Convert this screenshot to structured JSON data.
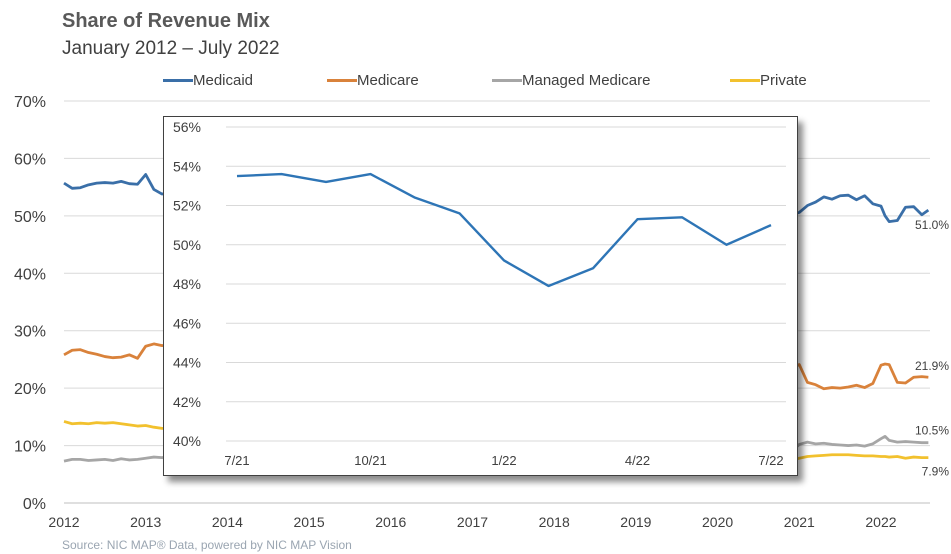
{
  "title": "Share of Revenue Mix",
  "subtitle": "January  2012 – July 2022",
  "source": "Source: NIC MAP® Data, powered  by NIC MAP Vision",
  "chart_data": [
    {
      "type": "line",
      "ylim": [
        0,
        70
      ],
      "y_ticks": [
        "0%",
        "10%",
        "20%",
        "30%",
        "40%",
        "50%",
        "60%",
        "70%"
      ],
      "x_ticks": [
        "2012",
        "2013",
        "2014",
        "2015",
        "2016",
        "2017",
        "2018",
        "2019",
        "2020",
        "2021",
        "2022"
      ],
      "xlim": [
        2012,
        2022.6
      ],
      "grid": true,
      "legend": "top",
      "series": [
        {
          "name": "Medicaid",
          "color": "#3a6fa8",
          "end_label": "51.0%",
          "x": [
            2012.0,
            2012.1,
            2012.2,
            2012.3,
            2012.4,
            2012.5,
            2012.6,
            2012.7,
            2012.8,
            2012.9,
            2013.0,
            2013.1,
            2013.2,
            2013.25,
            2020.9,
            2021.0,
            2021.1,
            2021.2,
            2021.3,
            2021.4,
            2021.5,
            2021.6,
            2021.7,
            2021.8,
            2021.9,
            2022.0,
            2022.05,
            2022.1,
            2022.2,
            2022.3,
            2022.4,
            2022.5,
            2022.58
          ],
          "y": [
            55.7,
            54.8,
            54.9,
            55.4,
            55.7,
            55.8,
            55.7,
            56.0,
            55.6,
            55.5,
            57.2,
            54.6,
            53.8,
            53.9,
            50.2,
            50.6,
            51.8,
            52.4,
            53.3,
            52.9,
            53.5,
            53.6,
            52.8,
            53.5,
            52.1,
            51.7,
            50.0,
            49.0,
            49.2,
            51.5,
            51.6,
            50.2,
            51.0
          ]
        },
        {
          "name": "Medicare",
          "color": "#d9823b",
          "end_label": "21.9%",
          "x": [
            2012.0,
            2012.1,
            2012.2,
            2012.3,
            2012.4,
            2012.5,
            2012.6,
            2012.7,
            2012.8,
            2012.9,
            2013.0,
            2013.1,
            2013.2,
            2013.25,
            2020.9,
            2021.0,
            2021.1,
            2021.2,
            2021.3,
            2021.4,
            2021.5,
            2021.6,
            2021.7,
            2021.8,
            2021.9,
            2022.0,
            2022.05,
            2022.1,
            2022.2,
            2022.3,
            2022.4,
            2022.5,
            2022.58
          ],
          "y": [
            25.8,
            26.6,
            26.7,
            26.2,
            25.9,
            25.5,
            25.3,
            25.4,
            25.8,
            25.2,
            27.3,
            27.7,
            27.4,
            27.5,
            23.5,
            24.1,
            21.0,
            20.6,
            19.9,
            20.1,
            20.0,
            20.2,
            20.5,
            20.1,
            20.8,
            24.0,
            24.2,
            24.1,
            21.0,
            20.9,
            21.9,
            22.0,
            21.9
          ]
        },
        {
          "name": "Managed Medicare",
          "color": "#a6a6a6",
          "end_label": "10.5%",
          "x": [
            2012.0,
            2012.1,
            2012.2,
            2012.3,
            2012.4,
            2012.5,
            2012.6,
            2012.7,
            2012.8,
            2012.9,
            2013.0,
            2013.1,
            2013.2,
            2013.25,
            2020.9,
            2021.0,
            2021.1,
            2021.2,
            2021.3,
            2021.4,
            2021.5,
            2021.6,
            2021.7,
            2021.8,
            2021.9,
            2022.0,
            2022.05,
            2022.1,
            2022.2,
            2022.3,
            2022.4,
            2022.5,
            2022.58
          ],
          "y": [
            7.3,
            7.6,
            7.6,
            7.4,
            7.5,
            7.6,
            7.4,
            7.7,
            7.5,
            7.6,
            7.8,
            8.0,
            7.9,
            8.0,
            8.9,
            10.2,
            10.6,
            10.3,
            10.4,
            10.2,
            10.1,
            10.0,
            10.1,
            9.9,
            10.3,
            11.2,
            11.6,
            10.9,
            10.6,
            10.7,
            10.6,
            10.5,
            10.5
          ]
        },
        {
          "name": "Private",
          "color": "#f2c12e",
          "end_label": "7.9%",
          "x": [
            2012.0,
            2012.1,
            2012.2,
            2012.3,
            2012.4,
            2012.5,
            2012.6,
            2012.7,
            2012.8,
            2012.9,
            2013.0,
            2013.1,
            2013.2,
            2013.25,
            2020.9,
            2021.0,
            2021.1,
            2021.2,
            2021.3,
            2021.4,
            2021.5,
            2021.6,
            2021.7,
            2021.8,
            2021.9,
            2022.0,
            2022.05,
            2022.1,
            2022.2,
            2022.3,
            2022.4,
            2022.5,
            2022.58
          ],
          "y": [
            14.2,
            13.8,
            13.9,
            13.8,
            14.0,
            13.9,
            14.0,
            13.8,
            13.6,
            13.4,
            13.5,
            13.2,
            13.0,
            13.0,
            7.4,
            7.8,
            8.1,
            8.2,
            8.3,
            8.4,
            8.4,
            8.4,
            8.3,
            8.2,
            8.2,
            8.1,
            8.1,
            8.0,
            8.1,
            7.8,
            8.0,
            7.9,
            7.9
          ]
        }
      ]
    },
    {
      "type": "line",
      "ylim": [
        40,
        56
      ],
      "y_ticks": [
        "40%",
        "42%",
        "44%",
        "46%",
        "48%",
        "50%",
        "52%",
        "54%",
        "56%"
      ],
      "categories": [
        "7/21",
        "8/21",
        "9/21",
        "10/21",
        "11/21",
        "12/21",
        "1/22",
        "2/22",
        "3/22",
        "4/22",
        "5/22",
        "6/22",
        "7/22"
      ],
      "x_ticks": [
        "7/21",
        "10/21",
        "1/22",
        "4/22",
        "7/22"
      ],
      "grid": true,
      "series": [
        {
          "color": "#2e75b6",
          "values": [
            53.5,
            53.6,
            53.2,
            53.6,
            52.4,
            51.6,
            49.2,
            47.9,
            48.8,
            51.3,
            51.4,
            50.0,
            51.0
          ]
        }
      ]
    }
  ]
}
